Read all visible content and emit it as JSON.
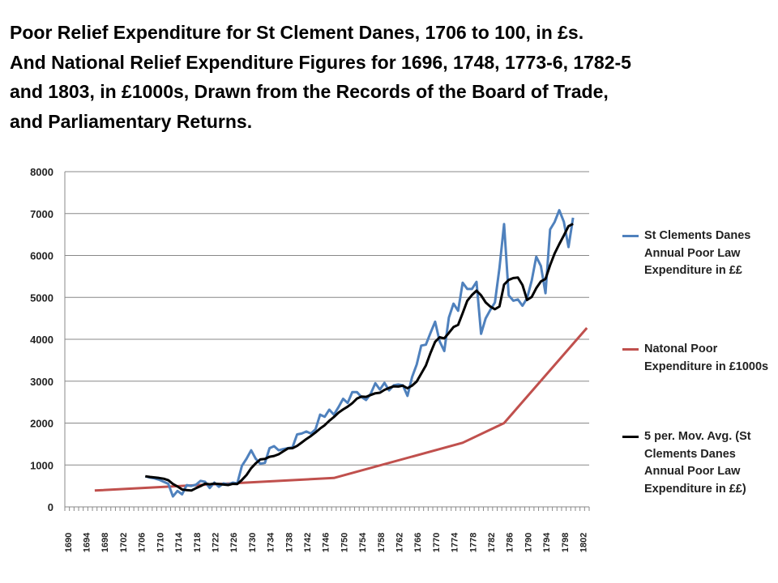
{
  "title_lines": [
    "Poor Relief Expenditure for St Clement Danes, 1706 to 100, in £s.",
    "And National Relief Expenditure Figures for 1696, 1748, 1773-6, 1782-5",
    "and 1803, in £1000s, Drawn from the Records of the Board of Trade,",
    "and Parliamentary Returns."
  ],
  "chart_data": {
    "type": "line",
    "title": "Poor Relief Expenditure for St Clement Danes, 1706 to 100, in £s. And National Relief Expenditure Figures for 1696, 1748, 1773-6, 1782-5 and 1803, in £1000s, Drawn from the Records of the Board of Trade, and Parliamentary Returns.",
    "xlabel": "",
    "ylabel": "",
    "xlim": [
      1690,
      1803
    ],
    "ylim": [
      0,
      8000
    ],
    "y_ticks": [
      "0",
      "1000",
      "2000",
      "3000",
      "4000",
      "5000",
      "6000",
      "7000",
      "8000"
    ],
    "x_ticks": [
      "1690",
      "1694",
      "1698",
      "1702",
      "1706",
      "1710",
      "1714",
      "1718",
      "1722",
      "1726",
      "1730",
      "1734",
      "1738",
      "1742",
      "1746",
      "1750",
      "1754",
      "1758",
      "1762",
      "1766",
      "1770",
      "1774",
      "1778",
      "1782",
      "1786",
      "1790",
      "1794",
      "1798",
      "1802"
    ],
    "grid": "horizontal",
    "legend": "right",
    "series": [
      {
        "name": "St Clements Danes Annual Poor Law Expenditure in ££",
        "color": "#4f81bd",
        "start_year": 1707,
        "values": [
          730,
          700,
          680,
          650,
          600,
          550,
          250,
          380,
          300,
          520,
          500,
          530,
          620,
          600,
          450,
          580,
          480,
          560,
          540,
          580,
          560,
          980,
          1150,
          1350,
          1150,
          1030,
          1050,
          1400,
          1450,
          1350,
          1380,
          1400,
          1420,
          1730,
          1750,
          1800,
          1750,
          1850,
          2200,
          2150,
          2320,
          2200,
          2380,
          2580,
          2480,
          2740,
          2740,
          2620,
          2550,
          2700,
          2950,
          2800,
          2960,
          2780,
          2900,
          2920,
          2900,
          2650,
          3100,
          3400,
          3850,
          3870,
          4150,
          4420,
          3950,
          3720,
          4520,
          4850,
          4680,
          5350,
          5200,
          5200,
          5370,
          4130,
          4500,
          4700,
          4880,
          5700,
          6750,
          5050,
          4920,
          4950,
          4800,
          4980,
          5400,
          5970,
          5750,
          5100,
          6620,
          6800,
          7080,
          6800,
          6200,
          6900
        ]
      },
      {
        "name": "Natonal Poor Expenditure in £1000s",
        "color": "#c0504d",
        "points": [
          [
            1696,
            390
          ],
          [
            1748,
            690
          ],
          [
            1776,
            1530
          ],
          [
            1785,
            2000
          ],
          [
            1803,
            4270
          ]
        ]
      },
      {
        "name": "5 per. Mov. Avg. (St Clements Danes Annual Poor Law Expenditure in ££)",
        "color": "#000000",
        "moving_average_of": 0,
        "period": 5
      }
    ]
  }
}
